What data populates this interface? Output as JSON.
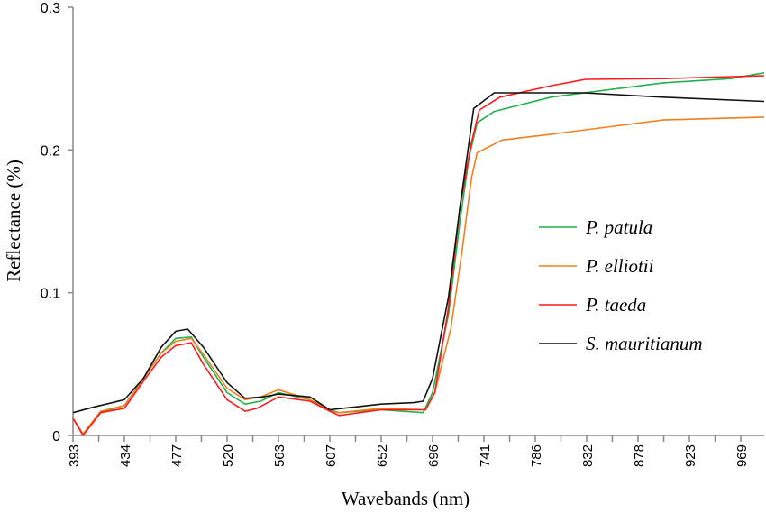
{
  "chart_data": {
    "type": "line",
    "title": "",
    "xlabel": "Wavebands  (nm)",
    "ylabel": "Reflectance  (%)",
    "xticks": [
      393,
      434,
      477,
      520,
      563,
      607,
      652,
      696,
      741,
      786,
      832,
      878,
      923,
      969
    ],
    "yticks": [
      "0",
      "0.1",
      "0.2",
      "0.3"
    ],
    "ylim": [
      0,
      0.3
    ],
    "xlim": [
      393,
      990
    ],
    "grid": false,
    "legend": "center-right",
    "series": [
      {
        "name": "P. patula",
        "color": "#22b14c",
        "points": [
          [
            393,
            0.012
          ],
          [
            401,
            0.001
          ],
          [
            415,
            0.016
          ],
          [
            434,
            0.021
          ],
          [
            450,
            0.04
          ],
          [
            465,
            0.058
          ],
          [
            477,
            0.068
          ],
          [
            490,
            0.069
          ],
          [
            500,
            0.055
          ],
          [
            520,
            0.03
          ],
          [
            535,
            0.022
          ],
          [
            548,
            0.024
          ],
          [
            563,
            0.03
          ],
          [
            590,
            0.025
          ],
          [
            607,
            0.018
          ],
          [
            615,
            0.016
          ],
          [
            652,
            0.018
          ],
          [
            688,
            0.016
          ],
          [
            696,
            0.03
          ],
          [
            710,
            0.085
          ],
          [
            720,
            0.15
          ],
          [
            728,
            0.195
          ],
          [
            735,
            0.219
          ],
          [
            750,
            0.227
          ],
          [
            800,
            0.237
          ],
          [
            850,
            0.242
          ],
          [
            900,
            0.247
          ],
          [
            960,
            0.25
          ],
          [
            990,
            0.254
          ]
        ]
      },
      {
        "name": "P. elliotii",
        "color": "#f07f1f",
        "points": [
          [
            393,
            0.012
          ],
          [
            401,
            0.001
          ],
          [
            415,
            0.017
          ],
          [
            434,
            0.021
          ],
          [
            450,
            0.04
          ],
          [
            465,
            0.058
          ],
          [
            477,
            0.066
          ],
          [
            490,
            0.068
          ],
          [
            500,
            0.057
          ],
          [
            520,
            0.033
          ],
          [
            535,
            0.025
          ],
          [
            548,
            0.027
          ],
          [
            563,
            0.032
          ],
          [
            590,
            0.025
          ],
          [
            607,
            0.017
          ],
          [
            615,
            0.016
          ],
          [
            652,
            0.019
          ],
          [
            690,
            0.018
          ],
          [
            698,
            0.03
          ],
          [
            712,
            0.075
          ],
          [
            722,
            0.13
          ],
          [
            730,
            0.18
          ],
          [
            735,
            0.198
          ],
          [
            757,
            0.207
          ],
          [
            800,
            0.211
          ],
          [
            850,
            0.216
          ],
          [
            900,
            0.221
          ],
          [
            990,
            0.223
          ]
        ]
      },
      {
        "name": "P. taeda",
        "color": "#ff1a1a",
        "points": [
          [
            393,
            0.012
          ],
          [
            401,
            0.0
          ],
          [
            415,
            0.016
          ],
          [
            434,
            0.019
          ],
          [
            450,
            0.038
          ],
          [
            465,
            0.055
          ],
          [
            477,
            0.063
          ],
          [
            490,
            0.065
          ],
          [
            500,
            0.05
          ],
          [
            520,
            0.025
          ],
          [
            535,
            0.017
          ],
          [
            545,
            0.019
          ],
          [
            563,
            0.027
          ],
          [
            590,
            0.024
          ],
          [
            607,
            0.017
          ],
          [
            615,
            0.014
          ],
          [
            652,
            0.018
          ],
          [
            690,
            0.018
          ],
          [
            698,
            0.03
          ],
          [
            710,
            0.09
          ],
          [
            720,
            0.16
          ],
          [
            730,
            0.205
          ],
          [
            737,
            0.228
          ],
          [
            755,
            0.237
          ],
          [
            800,
            0.245
          ],
          [
            831,
            0.2495
          ],
          [
            900,
            0.25
          ],
          [
            990,
            0.252
          ]
        ]
      },
      {
        "name": "S. mauritianum",
        "color": "#111111",
        "points": [
          [
            393,
            0.016
          ],
          [
            410,
            0.02
          ],
          [
            434,
            0.025
          ],
          [
            450,
            0.04
          ],
          [
            465,
            0.062
          ],
          [
            477,
            0.073
          ],
          [
            487,
            0.0745
          ],
          [
            500,
            0.062
          ],
          [
            520,
            0.037
          ],
          [
            535,
            0.026
          ],
          [
            550,
            0.027
          ],
          [
            563,
            0.029
          ],
          [
            590,
            0.027
          ],
          [
            607,
            0.018
          ],
          [
            630,
            0.02
          ],
          [
            652,
            0.022
          ],
          [
            680,
            0.023
          ],
          [
            688,
            0.024
          ],
          [
            696,
            0.04
          ],
          [
            710,
            0.097
          ],
          [
            720,
            0.16
          ],
          [
            727,
            0.2
          ],
          [
            732,
            0.229
          ],
          [
            750,
            0.24
          ],
          [
            800,
            0.24
          ],
          [
            830,
            0.24
          ],
          [
            900,
            0.237
          ],
          [
            990,
            0.234
          ]
        ]
      }
    ]
  }
}
